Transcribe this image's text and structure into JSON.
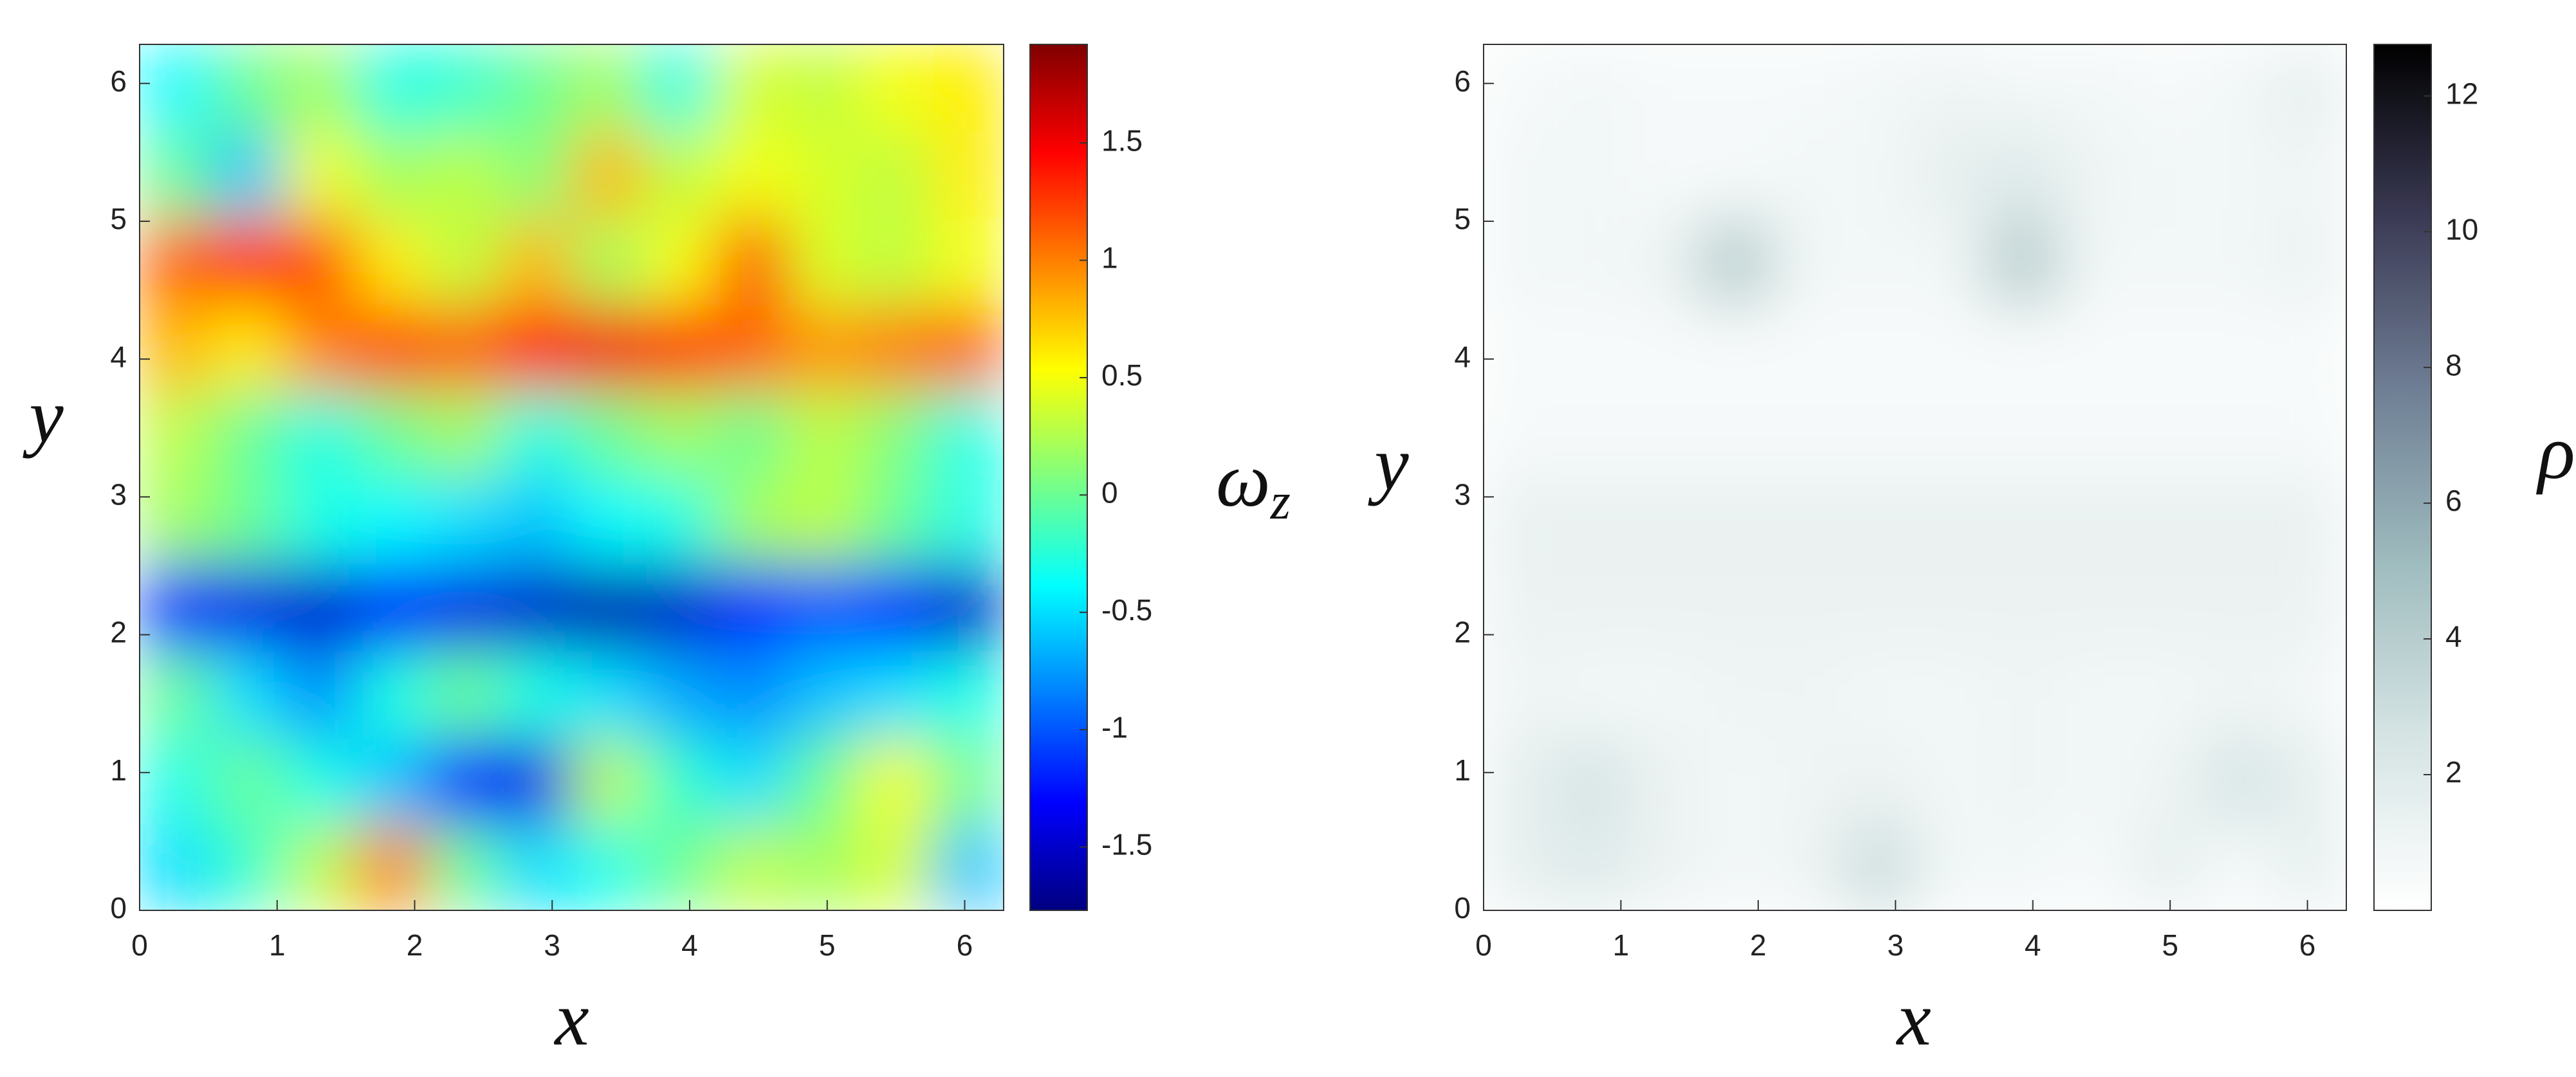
{
  "chart_data": [
    {
      "type": "heatmap",
      "xlabel": "x",
      "ylabel": "y",
      "colorbar_label": "ω",
      "colorbar_label_sub": "z",
      "colormap": "jet",
      "x": [
        0.26,
        0.79,
        1.31,
        1.83,
        2.36,
        2.88,
        3.4,
        3.93,
        4.45,
        4.97,
        5.5,
        6.02
      ],
      "y": [
        0.31,
        0.94,
        1.57,
        2.2,
        2.83,
        3.46,
        4.08,
        4.71,
        5.34,
        5.97
      ],
      "values": [
        [
          -0.5,
          -0.2,
          0.3,
          1.0,
          0,
          -0.5,
          -0.3,
          0,
          0.3,
          0.2,
          0.4,
          -0.6
        ],
        [
          -0.3,
          0,
          -0.3,
          -0.6,
          -1.3,
          -1.4,
          0.3,
          -0.2,
          -0.5,
          0,
          0.5,
          0
        ],
        [
          0,
          -0.5,
          -0.8,
          -0.3,
          0,
          -0.3,
          -0.5,
          -0.7,
          -0.8,
          -0.6,
          -0.5,
          -0.3
        ],
        [
          -1.2,
          -1.4,
          -1.5,
          -1.3,
          -1.4,
          -1.5,
          -1.6,
          -1.5,
          -1.2,
          -1.0,
          -1.2,
          -1.5
        ],
        [
          0.2,
          0,
          -0.3,
          -0.4,
          -0.5,
          -0.6,
          -0.4,
          -0.3,
          0.2,
          0.3,
          0,
          -0.3
        ],
        [
          0.3,
          0,
          -0.3,
          0,
          0.2,
          -0.3,
          0,
          0.2,
          0,
          0.3,
          0.1,
          -0.3
        ],
        [
          0.8,
          0.6,
          1.0,
          1.2,
          1.1,
          1.4,
          1.5,
          1.3,
          1.1,
          0.9,
          1.0,
          1.1
        ],
        [
          1.1,
          1.3,
          1.2,
          0.6,
          0.3,
          0.8,
          0.2,
          0.5,
          1.2,
          0.4,
          0.3,
          0.5
        ],
        [
          0,
          -0.6,
          0.5,
          0.2,
          0.3,
          0.1,
          0.8,
          0.3,
          0.5,
          0.4,
          0.3,
          0.6
        ],
        [
          -0.4,
          0,
          0.2,
          -0.3,
          -0.2,
          0,
          0.2,
          -0.3,
          0.4,
          0.3,
          0.5,
          0.6
        ]
      ],
      "xlim": [
        0,
        6.2832
      ],
      "ylim": [
        0,
        6.2832
      ],
      "xticks": [
        0,
        1,
        2,
        3,
        4,
        5,
        6
      ],
      "yticks": [
        0,
        1,
        2,
        3,
        4,
        5,
        6
      ],
      "clim": [
        -1.77,
        1.92
      ],
      "cticks": [
        -1.5,
        -1,
        -0.5,
        0,
        0.5,
        1,
        1.5
      ]
    },
    {
      "type": "heatmap",
      "xlabel": "x",
      "ylabel": "y",
      "colorbar_label": "ρ",
      "colormap": [
        "#ffffff",
        "#d6e4e4",
        "#9fbcbe",
        "#6f7f95",
        "#3b3a55",
        "#000000"
      ],
      "x": [
        0.26,
        0.79,
        1.31,
        1.83,
        2.36,
        2.88,
        3.4,
        3.93,
        4.45,
        4.97,
        5.5,
        6.02
      ],
      "y": [
        0.31,
        0.94,
        1.57,
        2.2,
        2.83,
        3.46,
        4.08,
        4.71,
        5.34,
        5.97
      ],
      "values": [
        [
          1.5,
          2,
          1.2,
          0.8,
          1,
          3,
          0.8,
          0.8,
          0.6,
          1.5,
          0.6,
          1.5
        ],
        [
          1.5,
          2.5,
          1.2,
          0.8,
          1,
          1.2,
          0.8,
          1,
          0.8,
          1,
          2.5,
          1.5
        ],
        [
          1,
          0.8,
          0.8,
          1,
          1,
          0.8,
          0.8,
          1,
          0.8,
          0.8,
          1,
          0.8
        ],
        [
          1.2,
          1.2,
          1.2,
          1.2,
          1.2,
          1.2,
          1.2,
          1.2,
          1.2,
          1.2,
          1.2,
          1.2
        ],
        [
          1.3,
          1.3,
          1.3,
          1.3,
          1.3,
          1.3,
          1.3,
          1.3,
          1.3,
          1.3,
          1.3,
          1.3
        ],
        [
          0.6,
          0.6,
          0.6,
          0.6,
          0.6,
          0.6,
          0.6,
          0.6,
          0.6,
          0.6,
          0.6,
          0.6
        ],
        [
          0.5,
          0.5,
          0.5,
          0.5,
          0.5,
          0.5,
          0.5,
          0.5,
          0.5,
          0.5,
          0.5,
          0.5
        ],
        [
          0.8,
          0.8,
          1,
          4,
          0.8,
          0.8,
          0.8,
          4,
          0.8,
          0.8,
          0.8,
          1.2
        ],
        [
          0.8,
          0.8,
          0.6,
          0.6,
          0.8,
          0.8,
          1.5,
          2,
          1,
          0.8,
          0.8,
          1
        ],
        [
          0.6,
          0.8,
          0.6,
          0.6,
          0.6,
          0.8,
          1,
          0.8,
          0.8,
          0.6,
          0.8,
          1.5
        ]
      ],
      "xlim": [
        0,
        6.2832
      ],
      "ylim": [
        0,
        6.2832
      ],
      "xticks": [
        0,
        1,
        2,
        3,
        4,
        5,
        6
      ],
      "yticks": [
        0,
        1,
        2,
        3,
        4,
        5,
        6
      ],
      "clim": [
        0,
        12.76
      ],
      "cticks": [
        2,
        4,
        6,
        8,
        10,
        12
      ]
    }
  ]
}
